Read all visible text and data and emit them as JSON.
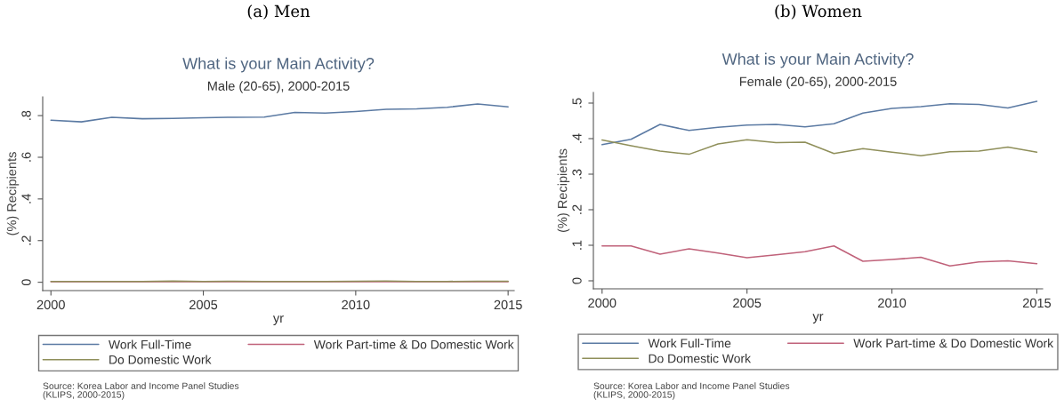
{
  "chart_data": [
    {
      "type": "line",
      "title": "What is your Main Activity?",
      "subtitle": "Male (20-65), 2000-2015",
      "xlabel": "yr",
      "ylabel": "(%) Recipients",
      "x": [
        2000,
        2001,
        2002,
        2003,
        2004,
        2005,
        2006,
        2007,
        2008,
        2009,
        2010,
        2011,
        2012,
        2013,
        2014,
        2015
      ],
      "series": [
        {
          "name": "Work Full-Time",
          "color": "#5b7aa3",
          "values": [
            0.778,
            0.77,
            0.792,
            0.785,
            0.787,
            0.79,
            0.792,
            0.793,
            0.815,
            0.812,
            0.82,
            0.83,
            0.832,
            0.84,
            0.856,
            0.842
          ]
        },
        {
          "name": "Work Part-time & Do Domestic Work",
          "color": "#c0627a",
          "values": [
            0.003,
            0.003,
            0.003,
            0.003,
            0.003,
            0.003,
            0.003,
            0.003,
            0.003,
            0.003,
            0.003,
            0.003,
            0.003,
            0.003,
            0.003,
            0.003
          ]
        },
        {
          "name": "Do Domestic Work",
          "color": "#8f8f5a",
          "values": [
            0.004,
            0.004,
            0.004,
            0.004,
            0.006,
            0.004,
            0.005,
            0.004,
            0.004,
            0.004,
            0.005,
            0.006,
            0.004,
            0.004,
            0.005,
            0.005
          ]
        }
      ],
      "xlim": [
        1999.73,
        2015.2
      ],
      "ylim": [
        -0.04,
        0.89
      ],
      "xticks": [
        2000,
        2005,
        2010,
        2015
      ],
      "yticks": [
        0,
        {
          "value": 0.2,
          "label": ".2"
        },
        {
          "value": 0.4,
          "label": ".4"
        },
        {
          "value": 0.6,
          "label": ".6"
        },
        {
          "value": 0.8,
          "label": ".8"
        }
      ],
      "legend": "bottom",
      "grid": false,
      "annotations": [
        "(a) Men",
        "Source: Korea Labor and Income Panel Studies\n(KLIPS, 2000-2015)"
      ]
    },
    {
      "type": "line",
      "title": "What is your Main Activity?",
      "subtitle": "Female (20-65), 2000-2015",
      "xlabel": "yr",
      "ylabel": "(%) Recipients",
      "x": [
        2000,
        2001,
        2002,
        2003,
        2004,
        2005,
        2006,
        2007,
        2008,
        2009,
        2010,
        2011,
        2012,
        2013,
        2014,
        2015
      ],
      "series": [
        {
          "name": "Work Full-Time",
          "color": "#5b7aa3",
          "values": [
            0.383,
            0.398,
            0.44,
            0.423,
            0.432,
            0.438,
            0.44,
            0.433,
            0.442,
            0.472,
            0.485,
            0.49,
            0.498,
            0.496,
            0.486,
            0.505
          ]
        },
        {
          "name": "Work Part-time & Do Domestic Work",
          "color": "#c0627a",
          "values": [
            0.098,
            0.098,
            0.075,
            0.09,
            0.078,
            0.065,
            0.073,
            0.082,
            0.098,
            0.055,
            0.06,
            0.066,
            0.042,
            0.053,
            0.056,
            0.048
          ]
        },
        {
          "name": "Do Domestic Work",
          "color": "#8f8f5a",
          "values": [
            0.396,
            0.38,
            0.365,
            0.356,
            0.385,
            0.397,
            0.389,
            0.39,
            0.358,
            0.372,
            0.362,
            0.352,
            0.363,
            0.365,
            0.376,
            0.362
          ]
        }
      ],
      "xlim": [
        1999.7,
        2015.2
      ],
      "ylim": [
        -0.0225,
        0.53
      ],
      "xticks": [
        2000,
        2005,
        2010,
        2015
      ],
      "yticks": [
        0,
        {
          "value": 0.1,
          "label": ".1"
        },
        {
          "value": 0.2,
          "label": ".2"
        },
        {
          "value": 0.3,
          "label": ".3"
        },
        {
          "value": 0.4,
          "label": ".4"
        },
        {
          "value": 0.5,
          "label": ".5"
        }
      ],
      "legend": "bottom",
      "grid": false,
      "annotations": [
        "(b) Women",
        "Source: Korea Labor and Income Panel Studies\n(KLIPS, 2000-2015)"
      ]
    }
  ]
}
